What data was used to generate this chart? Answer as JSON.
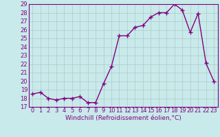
{
  "x": [
    0,
    1,
    2,
    3,
    4,
    5,
    6,
    7,
    8,
    9,
    10,
    11,
    12,
    13,
    14,
    15,
    16,
    17,
    18,
    19,
    20,
    21,
    22,
    23
  ],
  "y": [
    18.5,
    18.7,
    18.0,
    17.8,
    18.0,
    18.0,
    18.2,
    17.5,
    17.5,
    19.7,
    21.7,
    25.3,
    25.3,
    26.3,
    26.5,
    27.5,
    28.0,
    28.0,
    29.0,
    28.3,
    25.7,
    27.9,
    22.1,
    20.0
  ],
  "line_color": "#800080",
  "marker": "+",
  "bg_color": "#c8eaea",
  "grid_color": "#b0c8c8",
  "xlabel": "Windchill (Refroidissement éolien,°C)",
  "ylim": [
    17,
    29
  ],
  "xlim_min": -0.5,
  "xlim_max": 23.5,
  "yticks": [
    17,
    18,
    19,
    20,
    21,
    22,
    23,
    24,
    25,
    26,
    27,
    28,
    29
  ],
  "xticks": [
    0,
    1,
    2,
    3,
    4,
    5,
    6,
    7,
    8,
    9,
    10,
    11,
    12,
    13,
    14,
    15,
    16,
    17,
    18,
    19,
    20,
    21,
    22,
    23
  ],
  "xlabel_fontsize": 6.5,
  "tick_fontsize": 6,
  "line_width": 1.0,
  "marker_size": 4,
  "marker_edge_width": 1.0
}
